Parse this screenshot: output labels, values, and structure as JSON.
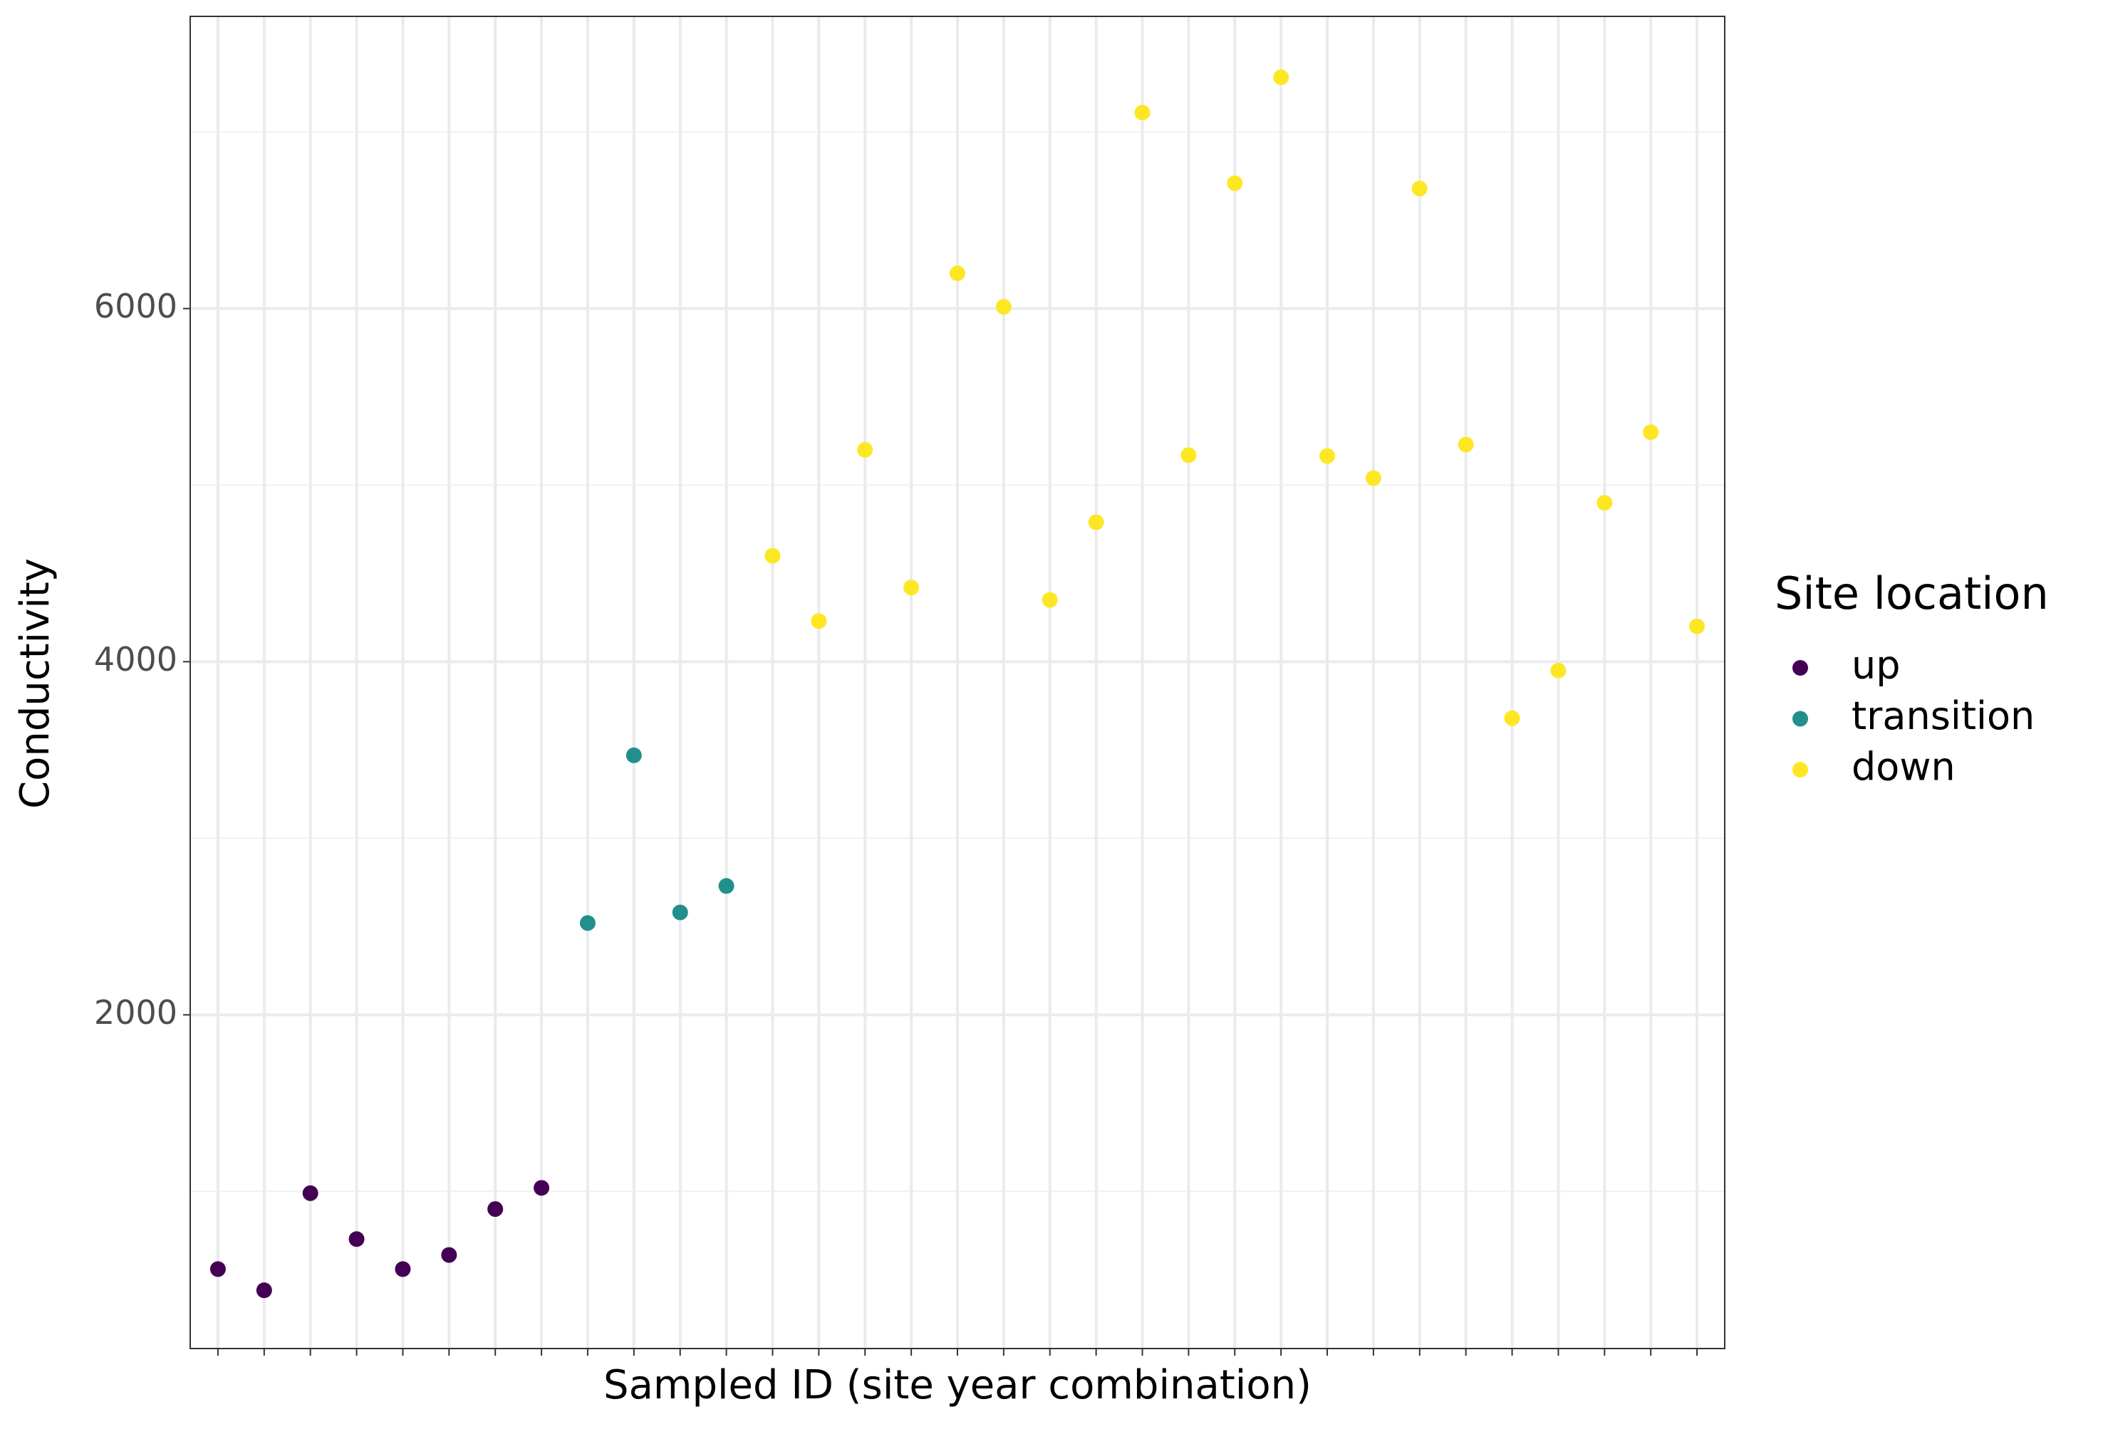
{
  "chart_data": {
    "type": "scatter",
    "x_label": "Sampled ID (site year combination)",
    "y_label": "Conductivity",
    "legend_title": "Site location",
    "legend_position": "right",
    "categories": [
      null,
      null,
      null,
      null,
      null,
      null,
      null,
      null,
      null,
      null,
      null,
      null,
      null,
      null,
      null,
      null,
      null,
      null,
      null,
      null,
      null,
      null,
      null,
      null,
      null,
      null,
      null,
      null,
      null,
      null,
      null,
      null,
      null
    ],
    "series": [
      {
        "name": "up",
        "color": "#440154",
        "values": [
          560,
          440,
          990,
          730,
          560,
          640,
          900,
          1020,
          null,
          null,
          null,
          null,
          null,
          null,
          null,
          null,
          null,
          null,
          null,
          null,
          null,
          null,
          null,
          null,
          null,
          null,
          null,
          null,
          null,
          null,
          null,
          null,
          null
        ]
      },
      {
        "name": "transition",
        "color": "#21908C",
        "values": [
          null,
          null,
          null,
          null,
          null,
          null,
          null,
          null,
          2520,
          3470,
          2580,
          2730,
          null,
          null,
          null,
          null,
          null,
          null,
          null,
          null,
          null,
          null,
          null,
          null,
          null,
          null,
          null,
          null,
          null,
          null,
          null,
          null,
          null
        ]
      },
      {
        "name": "down",
        "color": "#FDE725",
        "values": [
          null,
          null,
          null,
          null,
          null,
          null,
          null,
          null,
          null,
          null,
          null,
          null,
          4600,
          4230,
          5200,
          4420,
          6200,
          6010,
          4350,
          4790,
          7110,
          5170,
          6710,
          7310,
          5165,
          5040,
          6680,
          5230,
          3680,
          3950,
          4900,
          5300,
          4200
        ]
      }
    ],
    "ylim": [
      110,
      7655
    ],
    "yticks": [
      2000,
      4000,
      6000
    ],
    "yminor": [
      1000,
      3000,
      5000,
      7000
    ],
    "grid": true
  }
}
